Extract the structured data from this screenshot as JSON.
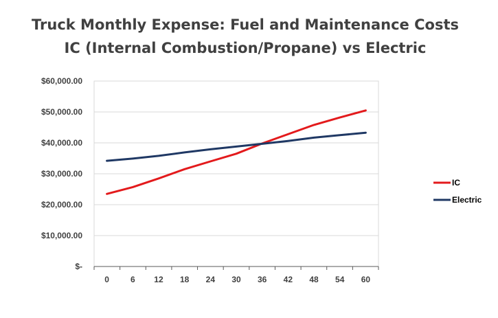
{
  "chart_data": {
    "type": "line",
    "title_lines": [
      "Truck Monthly Expense: Fuel and Maintenance Costs",
      "IC (Internal Combustion/Propane) vs Electric"
    ],
    "xlabel": "",
    "ylabel": "",
    "x": [
      0,
      6,
      12,
      18,
      24,
      30,
      36,
      42,
      48,
      54,
      60
    ],
    "x_tick_labels": [
      "0",
      "6",
      "12",
      "18",
      "24",
      "30",
      "36",
      "42",
      "48",
      "54",
      "60"
    ],
    "ylim": [
      0,
      60000
    ],
    "y_ticks": [
      0,
      10000,
      20000,
      30000,
      40000,
      50000,
      60000
    ],
    "y_tick_labels": [
      "$-",
      "$10,000.00",
      "$20,000.00",
      "$30,000.00",
      "$40,000.00",
      "$50,000.00",
      "$60,000.00"
    ],
    "grid": true,
    "legend_position": "right",
    "series": [
      {
        "name": "IC",
        "color": "#E31A1C",
        "values": [
          23500,
          25700,
          28500,
          31500,
          34000,
          36500,
          39800,
          42800,
          45800,
          48200,
          50500
        ]
      },
      {
        "name": "Electric",
        "color": "#1F3864",
        "values": [
          34200,
          34900,
          35800,
          36900,
          37900,
          38800,
          39700,
          40600,
          41700,
          42500,
          43300
        ]
      }
    ]
  }
}
